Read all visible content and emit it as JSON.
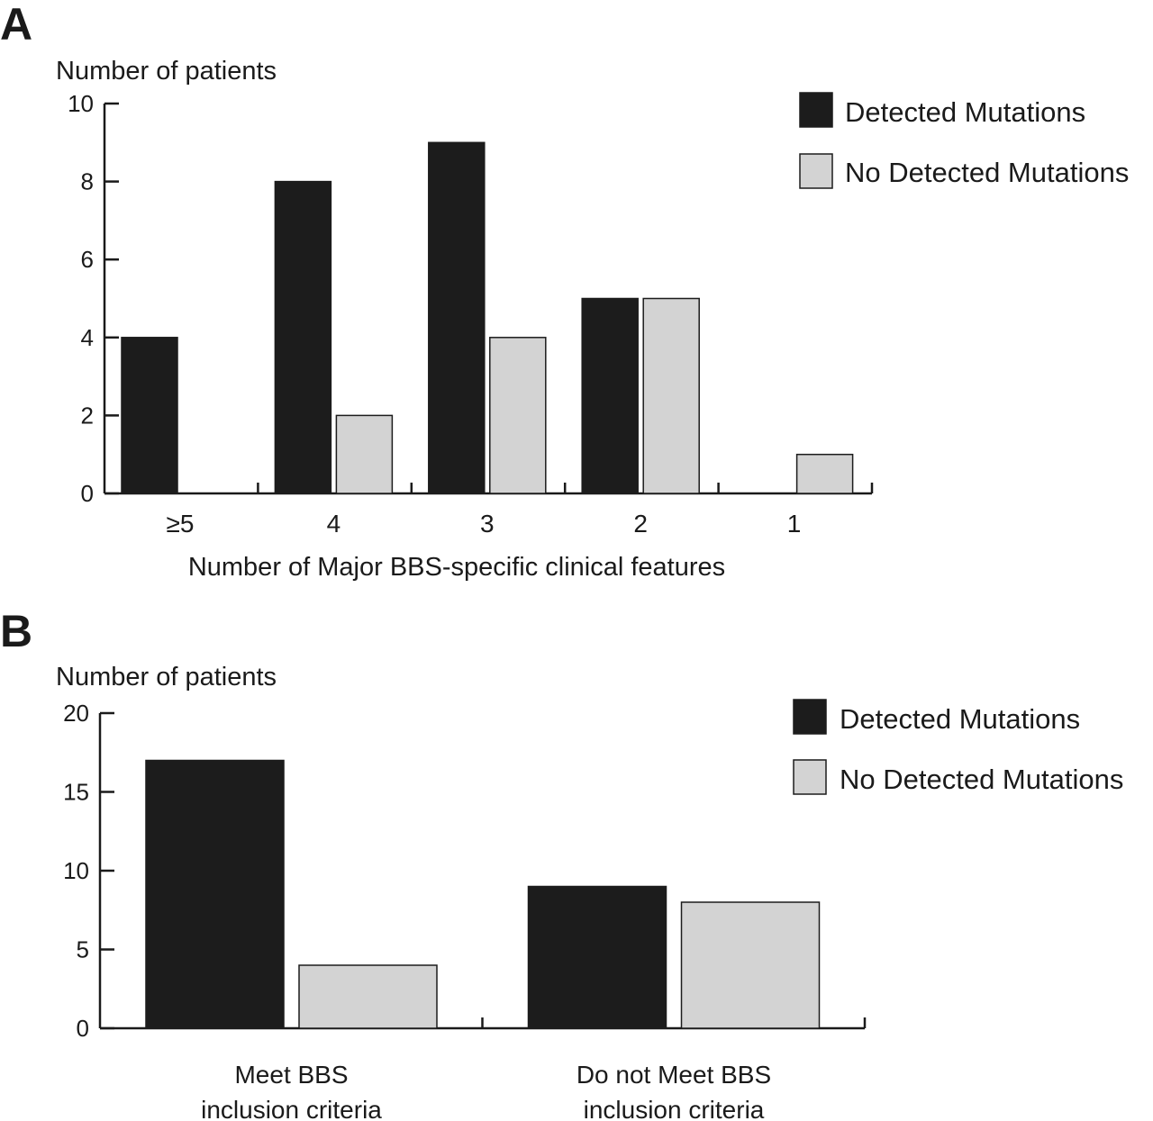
{
  "colors": {
    "detected": "#1c1c1c",
    "not_detected": "#d3d3d3"
  },
  "chart_data": [
    {
      "panel_label": "A",
      "type": "bar",
      "ylabel": "Number of patients",
      "xlabel": "Number of Major BBS-specific clinical features",
      "categories": [
        "≥5",
        "4",
        "3",
        "2",
        "1"
      ],
      "ylim": [
        0,
        10
      ],
      "yticks": [
        0,
        2,
        4,
        6,
        8,
        10
      ],
      "series": [
        {
          "name": "Detected Mutations",
          "values": [
            4,
            8,
            9,
            5,
            0
          ]
        },
        {
          "name": "No Detected Mutations",
          "values": [
            0,
            2,
            4,
            5,
            1
          ]
        }
      ],
      "legend_position": "top-right",
      "grid": false
    },
    {
      "panel_label": "B",
      "type": "bar",
      "ylabel": "Number of patients",
      "xlabel": "",
      "categories": [
        [
          "Meet BBS",
          "inclusion criteria"
        ],
        [
          "Do not Meet BBS",
          "inclusion criteria"
        ]
      ],
      "ylim": [
        0,
        20
      ],
      "yticks": [
        0,
        5,
        10,
        15,
        20
      ],
      "series": [
        {
          "name": "Detected Mutations",
          "values": [
            17,
            9
          ]
        },
        {
          "name": "No Detected Mutations",
          "values": [
            4,
            8
          ]
        }
      ],
      "legend_position": "top-right",
      "grid": false
    }
  ]
}
